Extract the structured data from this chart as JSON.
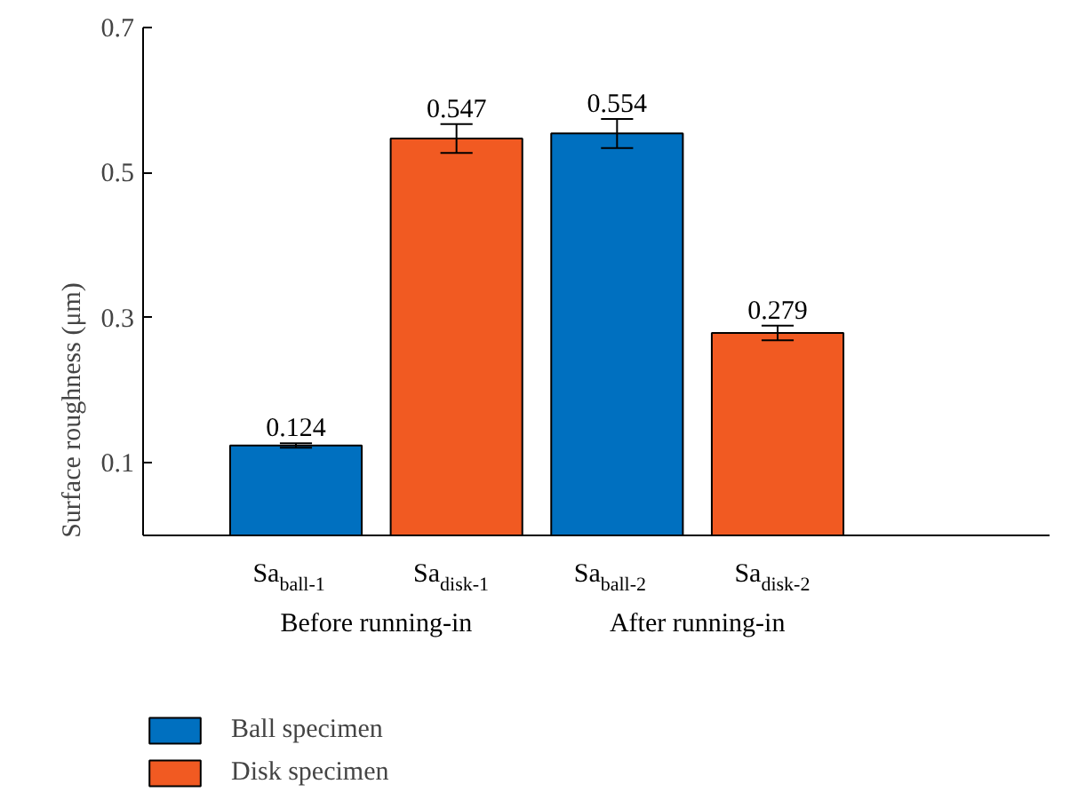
{
  "chart_data": {
    "type": "bar",
    "ylabel": "Surface roughness (μm)",
    "categories": [
      "Sa$_{ball-1}$",
      "Sa$_{disk-1}$",
      "Sa$_{ball-2}$",
      "Sa$_{disk-2}$"
    ],
    "series": [
      {
        "name": "Ball specimen",
        "color": "#0070c0",
        "values": [
          0.124,
          null,
          0.554,
          null
        ],
        "errors": [
          0.003,
          null,
          0.02,
          null
        ]
      },
      {
        "name": "Disk specimen",
        "color": "#f15a22",
        "values": [
          null,
          0.547,
          null,
          0.279
        ],
        "errors": [
          null,
          0.02,
          null,
          0.01
        ]
      }
    ],
    "annotations": [
      "Before running-in",
      "After running-in"
    ],
    "ylim": [
      0,
      0.7
    ],
    "yticks": [
      0.1,
      0.3,
      0.5,
      0.7
    ],
    "grid": false,
    "legend": "bottom left",
    "data_labels": true
  }
}
